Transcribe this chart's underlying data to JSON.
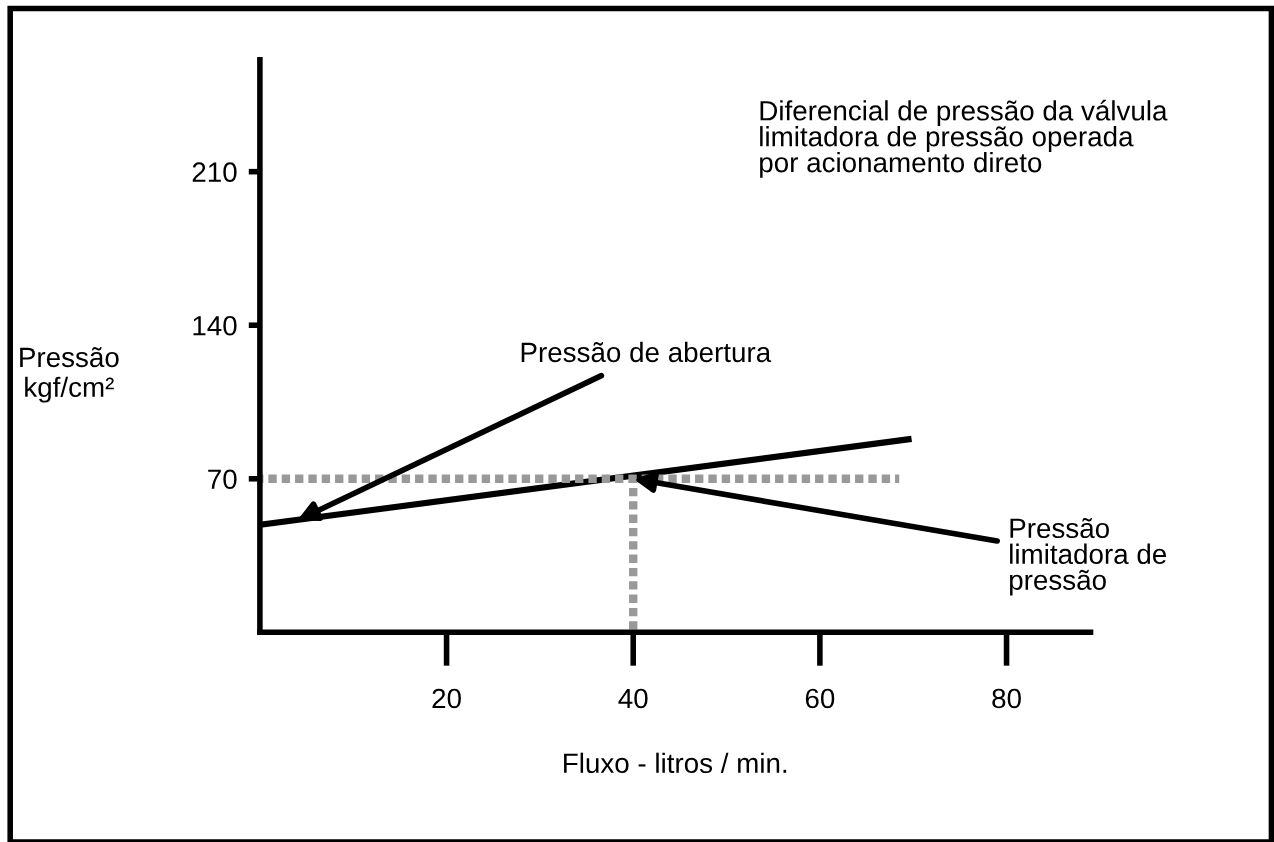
{
  "chart_data": {
    "type": "line",
    "title": "Diferencial de pressão da válvula\nlimitadora de pressão operada\npor acionamento direto",
    "xlabel": "Fluxo - litros / min.",
    "ylabel": "Pressão\nkgf/cm²",
    "series": [
      {
        "x": [
          0,
          69.5
        ],
        "values": [
          49,
          88
        ],
        "color": "#000000",
        "line_style": "solid"
      },
      {
        "x": [
          0,
          68.5
        ],
        "values": [
          70,
          70
        ],
        "color": "#999999",
        "line_style": "dotted"
      },
      {
        "x": [
          40,
          40
        ],
        "values": [
          0,
          70
        ],
        "color": "#999999",
        "line_style": "dotted"
      }
    ],
    "annotations": [
      {
        "text": "Pressão de abertura",
        "x": 4,
        "y": 51
      },
      {
        "text": "Pressão\nlimitadora de\npressão",
        "x": 40,
        "y": 70
      }
    ],
    "xlim": [
      0,
      89
    ],
    "ylim": [
      0,
      261
    ],
    "xticks": [
      20,
      40,
      60,
      80
    ],
    "yticks": [
      70,
      140,
      210
    ],
    "grid": false,
    "legend": false,
    "marker": "none"
  }
}
